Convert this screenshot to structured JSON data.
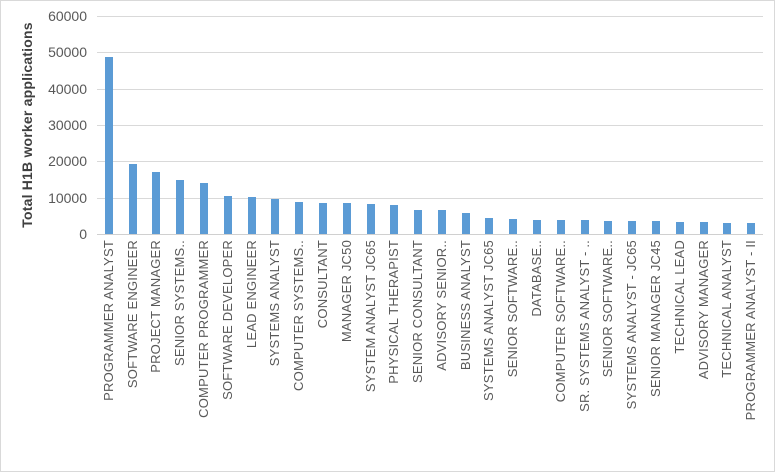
{
  "chart_data": {
    "type": "bar",
    "title": "",
    "xlabel": "",
    "ylabel": "Total H1B worker applications",
    "ylim": [
      0,
      60000
    ],
    "yticks": [
      0,
      10000,
      20000,
      30000,
      40000,
      50000,
      60000
    ],
    "ytick_labels": [
      "0",
      "10000",
      "20000",
      "30000",
      "40000",
      "50000",
      "60000"
    ],
    "grid": true,
    "legend_position": "none",
    "categories": [
      "PROGRAMMER ANALYST",
      "SOFTWARE ENGINEER",
      "PROJECT MANAGER",
      "SENIOR SYSTEMS..",
      "COMPUTER PROGRAMMER",
      "SOFTWARE DEVELOPER",
      "LEAD ENGINEER",
      "SYSTEMS ANALYST",
      "COMPUTER SYSTEMS..",
      "CONSULTANT",
      "MANAGER JC50",
      "SYSTEM ANALYST JC65",
      "PHYSICAL THERAPIST",
      "SENIOR CONSULTANT",
      "ADVISORY SENIOR..",
      "BUSINESS ANALYST",
      "SYSTEMS ANALYST JC65",
      "SENIOR SOFTWARE..",
      "DATABASE..",
      "COMPUTER SOFTWARE..",
      "SR. SYSTEMS ANALYST - ..",
      "SENIOR SOFTWARE..",
      "SYSTEMS ANALYST - JC65",
      "SENIOR MANAGER JC45",
      "TECHNICAL LEAD",
      "ADVISORY MANAGER",
      "TECHNICAL ANALYST",
      "PROGRAMMER ANALYST - II"
    ],
    "values": [
      48700,
      19300,
      17200,
      14800,
      14100,
      10500,
      10100,
      9700,
      8900,
      8500,
      8400,
      8200,
      7900,
      6700,
      6500,
      5900,
      4350,
      4250,
      3950,
      3900,
      3750,
      3700,
      3500,
      3450,
      3400,
      3350,
      3100,
      3000
    ],
    "colors": {
      "bar": "#5b9bd5",
      "gridline": "#d9d9d9",
      "axis_line": "#d0d0d0",
      "tick_label": "#595959",
      "axis_title": "#3f3f3f",
      "background": "#ffffff",
      "border": "#d9d9d9"
    }
  }
}
